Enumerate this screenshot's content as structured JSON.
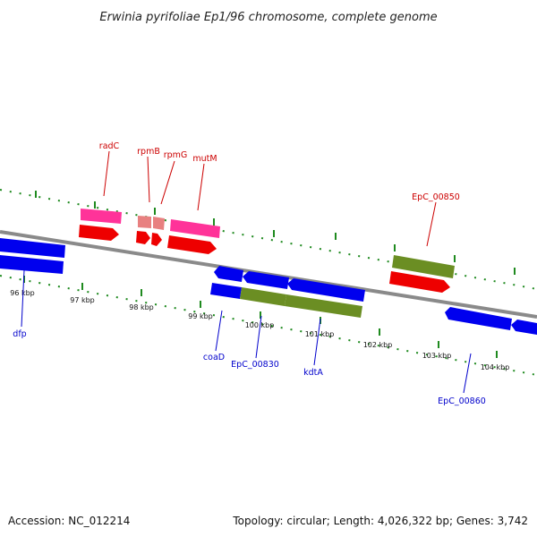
{
  "title": "Erwinia pyrifoliae Ep1/96 chromosome, complete genome",
  "footer": {
    "accession": "Accession: NC_012214",
    "summary": "Topology: circular; Length: 4,026,322 bp; Genes: 3,742"
  },
  "colors": {
    "forward_label": "#cc0000",
    "reverse_label": "#0000cc",
    "backbone": "#808080",
    "tick": "#228822",
    "cds_forward": "#ff0000",
    "cds_reverse": "#0000ff",
    "rrna_trna": "#ff3399",
    "pseudo": "#e88080",
    "highlight": "#6b8e23"
  },
  "kbp_ticks": [
    "96 kbp",
    "97 kbp",
    "98 kbp",
    "99 kbp",
    "100 kbp",
    "101 kbp",
    "102 kbp",
    "103 kbp",
    "104 kbp"
  ],
  "forward_genes": [
    "radC",
    "rpmB",
    "rpmG",
    "mutM",
    "EpC_00850"
  ],
  "reverse_genes": [
    "dfp",
    "coaD",
    "EpC_00830",
    "kdtA",
    "EpC_00860"
  ]
}
